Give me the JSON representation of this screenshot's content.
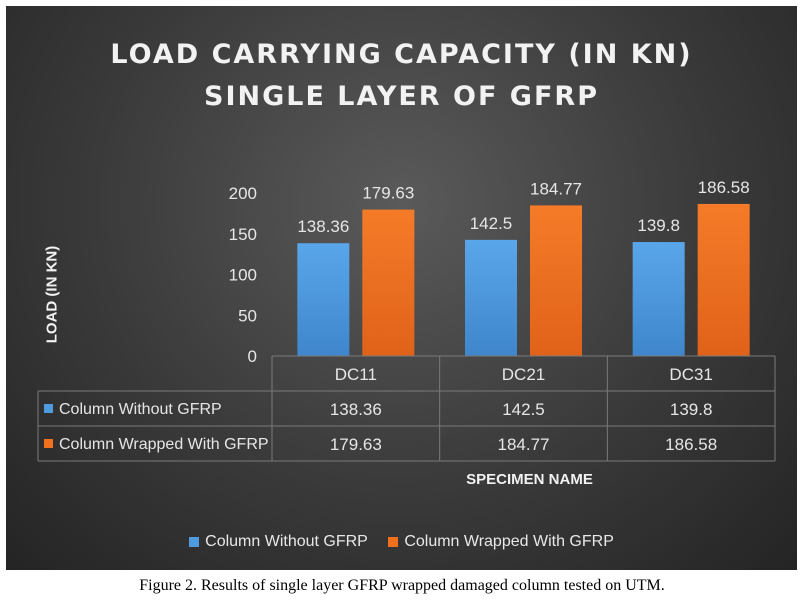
{
  "chart_data": {
    "type": "bar",
    "title": "LOAD CARRYING CAPACITY (IN KN)",
    "subtitle": "SINGLE LAYER OF GFRP",
    "xlabel": "SPECIMEN NAME",
    "ylabel": "LOAD (IN KN)",
    "categories": [
      "DC11",
      "DC21",
      "DC31"
    ],
    "series": [
      {
        "name": "Column Without GFRP",
        "values": [
          138.36,
          142.5,
          139.8
        ],
        "labels": [
          "138.36",
          "142.5",
          "139.8"
        ],
        "color": "#4f9be0"
      },
      {
        "name": "Column Wrapped With GFRP",
        "values": [
          179.63,
          184.77,
          186.58
        ],
        "labels": [
          "179.63",
          "184.77",
          "186.58"
        ],
        "color": "#f0701e"
      }
    ],
    "ylim": [
      0,
      200
    ],
    "yticks": [
      "0",
      "50",
      "100",
      "150",
      "200"
    ],
    "grid": false,
    "data_table": true,
    "legend_position": "bottom"
  },
  "caption": "Figure 2. Results of single layer GFRP wrapped damaged column tested on UTM."
}
